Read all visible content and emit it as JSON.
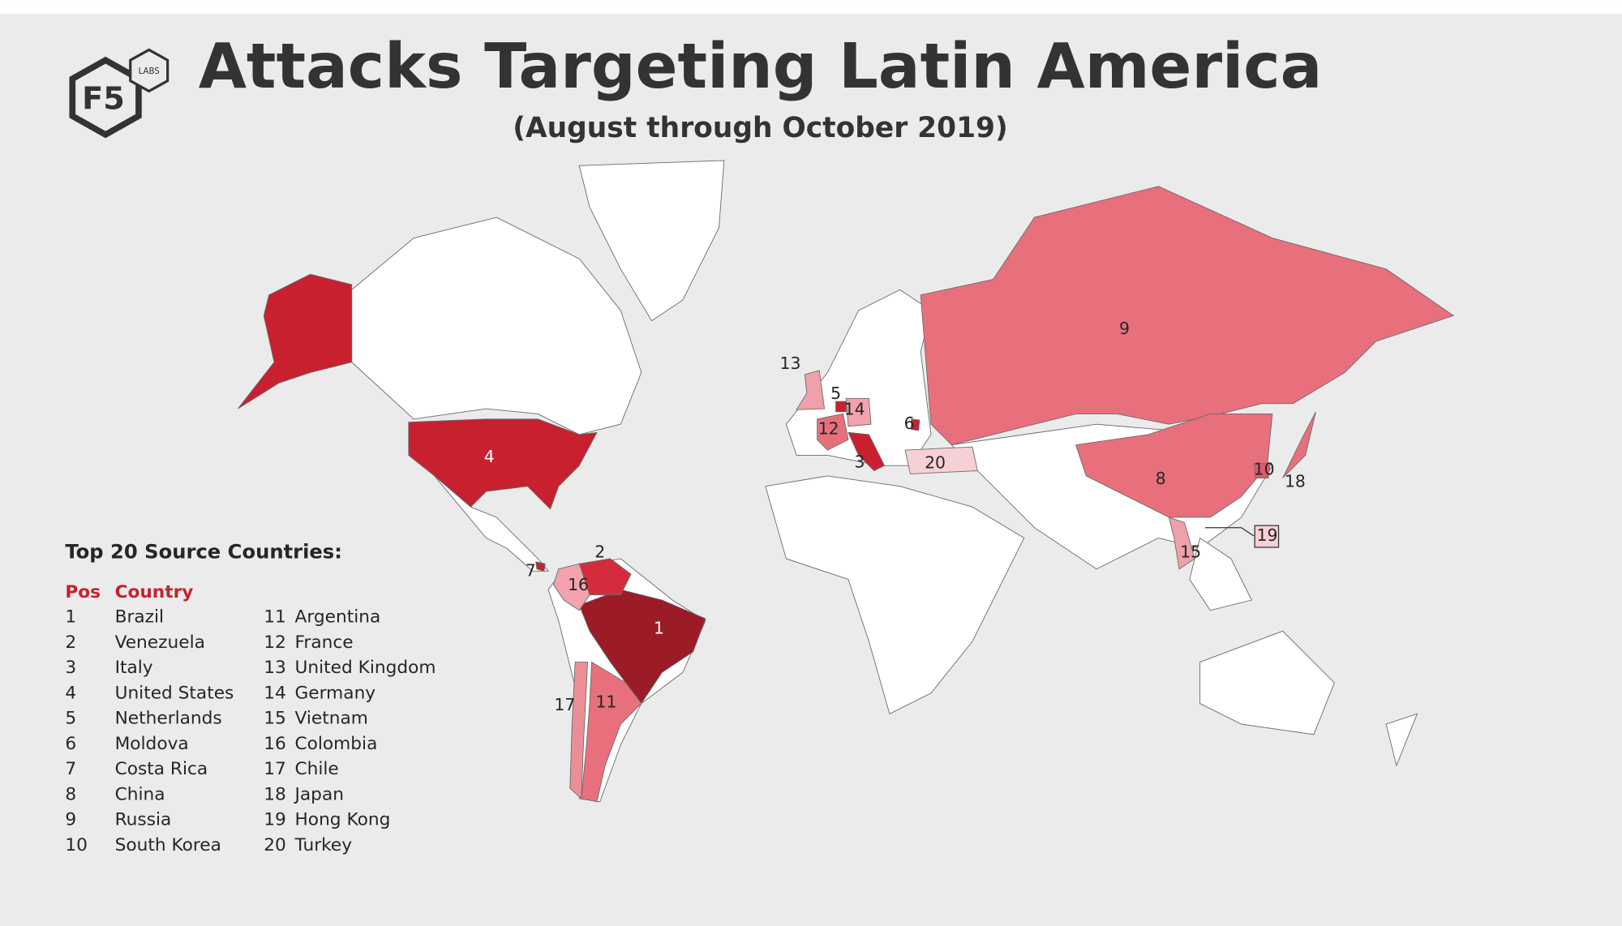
{
  "header": {
    "title": "Attacks Targeting Latin America",
    "subtitle": "(August through October 2019)"
  },
  "logo": {
    "name": "F5",
    "sub": "LABS"
  },
  "legend": {
    "title": "Top 20 Source Countries:",
    "columns": [
      "Pos",
      "Country"
    ],
    "rows": [
      [
        1,
        "Brazil"
      ],
      [
        2,
        "Venezuela"
      ],
      [
        3,
        "Italy"
      ],
      [
        4,
        "United States"
      ],
      [
        5,
        "Netherlands"
      ],
      [
        6,
        "Moldova"
      ],
      [
        7,
        "Costa Rica"
      ],
      [
        8,
        "China"
      ],
      [
        9,
        "Russia"
      ],
      [
        10,
        "South Korea"
      ],
      [
        11,
        "Argentina"
      ],
      [
        12,
        "France"
      ],
      [
        13,
        "United Kingdom"
      ],
      [
        14,
        "Germany"
      ],
      [
        15,
        "Vietnam"
      ],
      [
        16,
        "Colombia"
      ],
      [
        17,
        "Chile"
      ],
      [
        18,
        "Japan"
      ],
      [
        19,
        "Hong Kong"
      ],
      [
        20,
        "Turkey"
      ]
    ]
  },
  "map": {
    "labels": [
      1,
      2,
      3,
      4,
      5,
      6,
      7,
      8,
      9,
      10,
      11,
      12,
      13,
      14,
      15,
      16,
      17,
      18,
      19,
      20
    ]
  }
}
